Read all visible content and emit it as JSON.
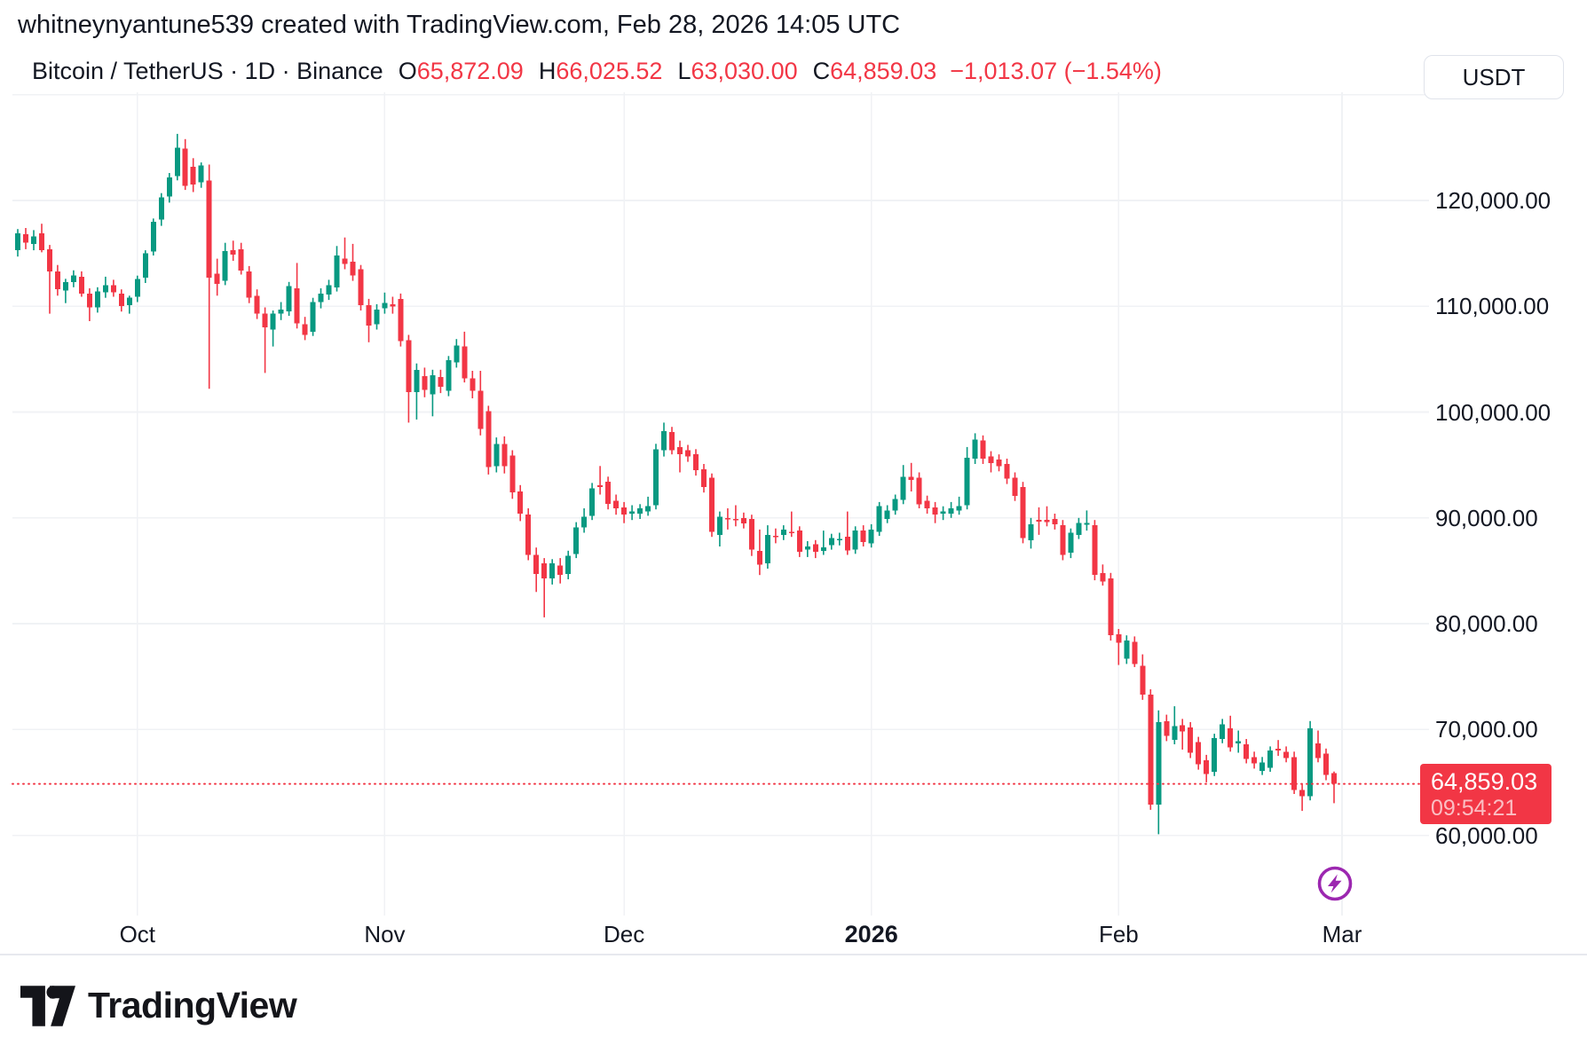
{
  "header": {
    "attribution": "whitneynyantune539 created with TradingView.com, Feb 28, 2026 14:05 UTC"
  },
  "legend": {
    "title": "Bitcoin / TetherUS · 1D · Binance",
    "ohlc": [
      {
        "k": "O",
        "v": "65,872.09"
      },
      {
        "k": "H",
        "v": "66,025.52"
      },
      {
        "k": "L",
        "v": "63,030.00"
      },
      {
        "k": "C",
        "v": "64,859.03"
      }
    ],
    "change": "−1,013.07 (−1.54%)"
  },
  "currency_button": {
    "label": "USDT"
  },
  "price_scale": {
    "labels": [
      {
        "price": 120000,
        "label": "120,000.00"
      },
      {
        "price": 110000,
        "label": "110,000.00"
      },
      {
        "price": 100000,
        "label": "100,000.00"
      },
      {
        "price": 90000,
        "label": "90,000.00"
      },
      {
        "price": 80000,
        "label": "80,000.00"
      },
      {
        "price": 70000,
        "label": "70,000.00"
      },
      {
        "price": 60000,
        "label": "60,000.00"
      }
    ],
    "gridline_prices": [
      130000,
      120000,
      110000,
      100000,
      90000,
      80000,
      70000,
      60000
    ],
    "last_price_badge": {
      "price": "64,859.03",
      "countdown": "09:54:21"
    }
  },
  "time_scale": {
    "labels": [
      {
        "label": "Oct",
        "index": 15,
        "bold": false
      },
      {
        "label": "Nov",
        "index": 46,
        "bold": false
      },
      {
        "label": "Dec",
        "index": 76,
        "bold": false
      },
      {
        "label": "2026",
        "index": 107,
        "bold": true
      },
      {
        "label": "Feb",
        "index": 138,
        "bold": false
      },
      {
        "label": "Mar",
        "index": 166,
        "bold": false
      }
    ]
  },
  "branding": {
    "logo_text": "TradingView"
  },
  "colors": {
    "up": "#089981",
    "down": "#F23645",
    "grid": "#F0F2F5",
    "text": "#131722",
    "border": "#E0E3EB",
    "badge": "#F23645",
    "boost_purple": "#9C27B0",
    "background": "#FFFFFF"
  },
  "chart_data": {
    "type": "candlestick",
    "title": "Bitcoin / TetherUS",
    "interval": "1D",
    "exchange": "Binance",
    "unit": "USDT",
    "x_range": [
      "2025-09-16",
      "2026-02-28"
    ],
    "ylim": [
      57000,
      128000
    ],
    "y_ticks": [
      60000,
      70000,
      80000,
      90000,
      100000,
      110000,
      120000
    ],
    "grid": true,
    "legend_position": "top-left",
    "price_line": 64859.03,
    "last_bar": {
      "open": 65872.09,
      "high": 66025.52,
      "low": 63030.0,
      "close": 64859.03,
      "change": -1013.07,
      "change_pct": -1.54
    },
    "candles": [
      [
        115300,
        117300,
        114700,
        116900
      ],
      [
        116800,
        117400,
        115400,
        116000
      ],
      [
        115900,
        117200,
        115300,
        116600
      ],
      [
        116900,
        117800,
        115100,
        115300
      ],
      [
        115400,
        115800,
        109300,
        113300
      ],
      [
        113300,
        113900,
        111000,
        111600
      ],
      [
        111500,
        112600,
        110300,
        112300
      ],
      [
        112300,
        113400,
        111800,
        112900
      ],
      [
        112800,
        113300,
        110900,
        111200
      ],
      [
        111200,
        111700,
        108600,
        109900
      ],
      [
        109900,
        111800,
        109400,
        111400
      ],
      [
        111300,
        112800,
        110800,
        112000
      ],
      [
        112000,
        112500,
        110900,
        111300
      ],
      [
        111200,
        111600,
        109500,
        110000
      ],
      [
        110100,
        111000,
        109300,
        110800
      ],
      [
        110900,
        112900,
        110400,
        112600
      ],
      [
        112700,
        115300,
        112200,
        115000
      ],
      [
        115200,
        118300,
        114800,
        118000
      ],
      [
        118200,
        120700,
        117600,
        120300
      ],
      [
        120400,
        122600,
        119800,
        122200
      ],
      [
        122300,
        126300,
        121900,
        125000
      ],
      [
        124900,
        125800,
        121000,
        121400
      ],
      [
        123200,
        124000,
        120800,
        121500
      ],
      [
        121700,
        123600,
        121200,
        123300
      ],
      [
        121900,
        123400,
        102200,
        112700
      ],
      [
        113100,
        114500,
        111000,
        112100
      ],
      [
        112400,
        116000,
        112000,
        115200
      ],
      [
        115300,
        116200,
        114300,
        114900
      ],
      [
        115400,
        116000,
        113000,
        113400
      ],
      [
        113300,
        113800,
        110300,
        110800
      ],
      [
        111000,
        111600,
        108800,
        109300
      ],
      [
        109300,
        109900,
        103700,
        108000
      ],
      [
        107800,
        109600,
        106200,
        109300
      ],
      [
        109300,
        110400,
        108700,
        109700
      ],
      [
        109500,
        112300,
        109100,
        111900
      ],
      [
        111700,
        114100,
        107900,
        108400
      ],
      [
        108300,
        109000,
        106800,
        107300
      ],
      [
        107600,
        110800,
        107200,
        110400
      ],
      [
        110400,
        111700,
        109800,
        111200
      ],
      [
        111100,
        112500,
        110600,
        112000
      ],
      [
        111800,
        115700,
        111400,
        114800
      ],
      [
        114500,
        116500,
        113500,
        114000
      ],
      [
        114200,
        115900,
        112400,
        112900
      ],
      [
        113500,
        113900,
        109600,
        110100
      ],
      [
        110100,
        110700,
        106600,
        108200
      ],
      [
        108300,
        110200,
        107800,
        109700
      ],
      [
        109800,
        111300,
        109300,
        110300
      ],
      [
        110200,
        110900,
        109300,
        110000
      ],
      [
        110700,
        111200,
        106200,
        106700
      ],
      [
        106800,
        107300,
        99000,
        101900
      ],
      [
        101900,
        104600,
        99300,
        104000
      ],
      [
        103400,
        104200,
        101400,
        102100
      ],
      [
        101700,
        104000,
        99600,
        103500
      ],
      [
        103300,
        104000,
        101800,
        102400
      ],
      [
        102000,
        105300,
        101500,
        104900
      ],
      [
        104700,
        106900,
        104200,
        106300
      ],
      [
        106200,
        107600,
        102800,
        103200
      ],
      [
        103200,
        103900,
        101300,
        102000
      ],
      [
        102000,
        103900,
        97800,
        98400
      ],
      [
        100100,
        100600,
        94100,
        94800
      ],
      [
        94900,
        97600,
        94300,
        97000
      ],
      [
        97000,
        97700,
        94200,
        94900
      ],
      [
        95900,
        96400,
        91800,
        92400
      ],
      [
        92500,
        93100,
        89700,
        90400
      ],
      [
        90300,
        90900,
        86000,
        86500
      ],
      [
        86500,
        87200,
        83000,
        84700
      ],
      [
        85700,
        86200,
        80600,
        84300
      ],
      [
        84300,
        86100,
        83700,
        85700
      ],
      [
        85500,
        86200,
        83800,
        84600
      ],
      [
        84700,
        86900,
        84200,
        86400
      ],
      [
        86600,
        89600,
        86200,
        89100
      ],
      [
        89100,
        90900,
        88600,
        90100
      ],
      [
        90200,
        93300,
        89800,
        92800
      ],
      [
        93100,
        94900,
        92200,
        92900
      ],
      [
        93400,
        93900,
        90800,
        91300
      ],
      [
        91600,
        92200,
        90300,
        90900
      ],
      [
        91000,
        91500,
        89500,
        90300
      ],
      [
        90400,
        91200,
        89800,
        90600
      ],
      [
        90400,
        91300,
        89900,
        90900
      ],
      [
        90600,
        92000,
        90200,
        91100
      ],
      [
        91200,
        97000,
        90800,
        96500
      ],
      [
        96400,
        99000,
        95800,
        98200
      ],
      [
        98100,
        98600,
        96000,
        96400
      ],
      [
        96700,
        97300,
        94300,
        96000
      ],
      [
        96400,
        96900,
        95300,
        95800
      ],
      [
        96000,
        96500,
        94000,
        94500
      ],
      [
        94600,
        95100,
        92400,
        92900
      ],
      [
        93800,
        94200,
        88200,
        88700
      ],
      [
        88400,
        90600,
        87300,
        90100
      ],
      [
        90000,
        90900,
        88900,
        89900
      ],
      [
        89900,
        91200,
        89200,
        89800
      ],
      [
        90000,
        90500,
        89000,
        89500
      ],
      [
        89900,
        90300,
        86400,
        87000
      ],
      [
        86900,
        88900,
        84600,
        85600
      ],
      [
        85700,
        89300,
        85200,
        88400
      ],
      [
        88300,
        89000,
        87600,
        88200
      ],
      [
        88400,
        89300,
        87900,
        88900
      ],
      [
        88700,
        90600,
        88200,
        88600
      ],
      [
        88800,
        89200,
        86300,
        86800
      ],
      [
        87000,
        87800,
        86300,
        87300
      ],
      [
        87500,
        87900,
        86200,
        86800
      ],
      [
        86900,
        88800,
        86500,
        87200
      ],
      [
        87400,
        88500,
        87000,
        88100
      ],
      [
        88000,
        88600,
        87400,
        88000
      ],
      [
        88200,
        90600,
        86500,
        86900
      ],
      [
        87000,
        89200,
        86600,
        88800
      ],
      [
        88800,
        89300,
        87300,
        87700
      ],
      [
        87600,
        89400,
        87200,
        88900
      ],
      [
        88700,
        91500,
        88300,
        91100
      ],
      [
        89900,
        91200,
        89500,
        90700
      ],
      [
        90700,
        92200,
        90300,
        91800
      ],
      [
        91700,
        95000,
        91300,
        93900
      ],
      [
        93900,
        95200,
        92500,
        93600
      ],
      [
        93800,
        94300,
        90900,
        91300
      ],
      [
        91600,
        92100,
        90400,
        90900
      ],
      [
        91000,
        91500,
        89500,
        90300
      ],
      [
        90400,
        91100,
        89800,
        90600
      ],
      [
        90400,
        91500,
        90000,
        90900
      ],
      [
        90700,
        92000,
        90300,
        91100
      ],
      [
        91200,
        96700,
        90800,
        95700
      ],
      [
        95600,
        98000,
        95100,
        97400
      ],
      [
        97300,
        97800,
        95100,
        95600
      ],
      [
        95800,
        96300,
        94300,
        95200
      ],
      [
        95500,
        96000,
        94400,
        94900
      ],
      [
        95100,
        95600,
        93200,
        93700
      ],
      [
        93800,
        94300,
        91600,
        92100
      ],
      [
        92900,
        93400,
        87600,
        88100
      ],
      [
        87900,
        90000,
        87100,
        89400
      ],
      [
        89800,
        91000,
        88400,
        89700
      ],
      [
        89800,
        91100,
        89200,
        89600
      ],
      [
        89900,
        90400,
        88900,
        89400
      ],
      [
        89300,
        89800,
        86000,
        86500
      ],
      [
        86700,
        89000,
        86200,
        88600
      ],
      [
        88400,
        90000,
        88000,
        89500
      ],
      [
        89400,
        90700,
        88800,
        89500
      ],
      [
        89300,
        89800,
        84100,
        84600
      ],
      [
        84800,
        85600,
        83600,
        84000
      ],
      [
        84300,
        84800,
        78400,
        78900
      ],
      [
        79000,
        79500,
        76100,
        78200
      ],
      [
        76700,
        78900,
        76200,
        78400
      ],
      [
        78300,
        78800,
        75900,
        76200
      ],
      [
        76000,
        77100,
        72800,
        73300
      ],
      [
        73300,
        73800,
        62400,
        62900
      ],
      [
        62900,
        71800,
        60100,
        70700
      ],
      [
        70800,
        71400,
        68900,
        69400
      ],
      [
        69000,
        72200,
        68600,
        70300
      ],
      [
        70400,
        71000,
        68100,
        69800
      ],
      [
        70200,
        70700,
        67300,
        67800
      ],
      [
        68800,
        69300,
        66200,
        66700
      ],
      [
        67100,
        67600,
        65000,
        65800
      ],
      [
        66000,
        69600,
        65600,
        69200
      ],
      [
        69100,
        71000,
        68700,
        70500
      ],
      [
        70100,
        71300,
        67900,
        68300
      ],
      [
        68700,
        69900,
        67800,
        68900
      ],
      [
        68600,
        69100,
        66800,
        67200
      ],
      [
        67400,
        67900,
        66300,
        66800
      ],
      [
        66100,
        67400,
        65700,
        66900
      ],
      [
        66400,
        68400,
        66000,
        68000
      ],
      [
        68200,
        69000,
        67500,
        68000
      ],
      [
        67900,
        68400,
        66900,
        67300
      ],
      [
        67400,
        67900,
        63900,
        64300
      ],
      [
        64300,
        64800,
        62300,
        63700
      ],
      [
        63700,
        70800,
        63300,
        70100
      ],
      [
        68700,
        69900,
        66900,
        67300
      ],
      [
        67700,
        68200,
        65200,
        65700
      ],
      [
        65872.09,
        66025.52,
        63030,
        64859.03
      ]
    ]
  }
}
